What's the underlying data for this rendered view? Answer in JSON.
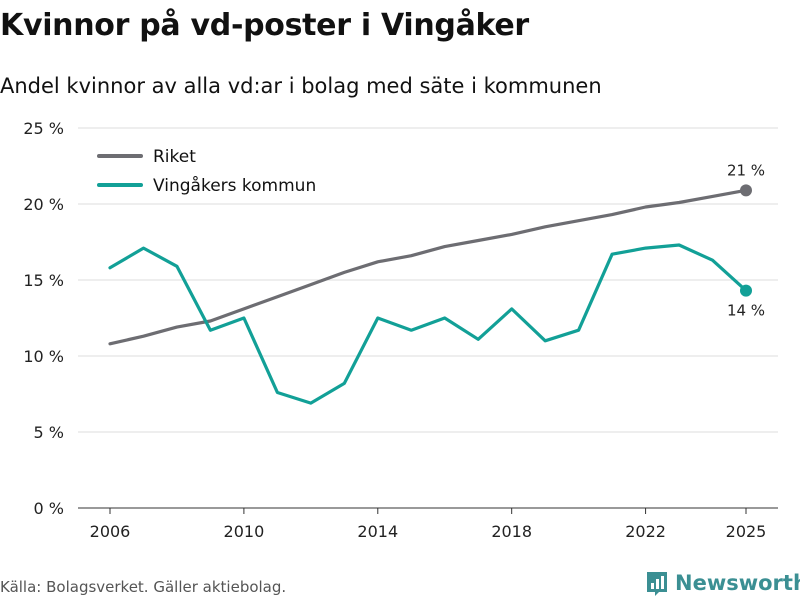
{
  "header": {
    "title": "Kvinnor på vd-poster i Vingåker",
    "subtitle": "Andel kvinnor av alla vd:ar i bolag med säte i kommunen"
  },
  "footer": {
    "source": "Källa: Bolagsverket. Gäller aktiebolag.",
    "brand": "Newsworthy"
  },
  "colors": {
    "riket": "#6d6d72",
    "kommun": "#12a097",
    "grid": "#dcdcdc",
    "brand": "#3b8f93"
  },
  "chart_data": {
    "type": "line",
    "title": "Kvinnor på vd-poster i Vingåker",
    "subtitle": "Andel kvinnor av alla vd:ar i bolag med säte i kommunen",
    "xlabel": "",
    "ylabel": "",
    "x": [
      2006,
      2007,
      2008,
      2009,
      2010,
      2011,
      2012,
      2013,
      2014,
      2015,
      2016,
      2017,
      2018,
      2019,
      2020,
      2021,
      2022,
      2023,
      2024,
      2025
    ],
    "xlim": [
      2006,
      2025
    ],
    "ylim": [
      0,
      25
    ],
    "x_ticks": [
      2006,
      2010,
      2014,
      2018,
      2022,
      2025
    ],
    "y_ticks": [
      {
        "value": 0,
        "label": "0 %"
      },
      {
        "value": 5,
        "label": "5 %"
      },
      {
        "value": 10,
        "label": "10 %"
      },
      {
        "value": 15,
        "label": "15 %"
      },
      {
        "value": 20,
        "label": "20 %"
      },
      {
        "value": 25,
        "label": "25 %"
      }
    ],
    "grid": true,
    "legend_position": "top-left",
    "series": [
      {
        "name": "Riket",
        "color": "#6d6d72",
        "values": [
          10.8,
          11.3,
          11.9,
          12.3,
          13.1,
          13.9,
          14.7,
          15.5,
          16.2,
          16.6,
          17.2,
          17.6,
          18.0,
          18.5,
          18.9,
          19.3,
          19.8,
          20.1,
          20.5,
          20.9
        ],
        "end_label": "21 %"
      },
      {
        "name": "Vingåkers kommun",
        "color": "#12a097",
        "values": [
          15.8,
          17.1,
          15.9,
          11.7,
          12.5,
          7.6,
          6.9,
          8.2,
          12.5,
          11.7,
          12.5,
          11.1,
          13.1,
          11.0,
          11.7,
          16.7,
          17.1,
          17.3,
          16.3,
          14.3
        ],
        "end_label": "14 %"
      }
    ]
  }
}
